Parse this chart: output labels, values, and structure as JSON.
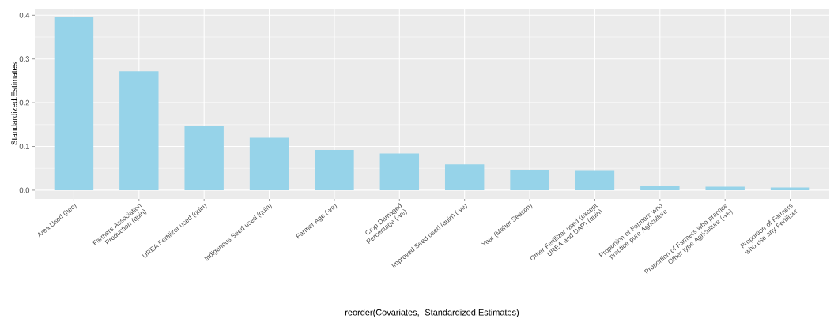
{
  "chart_data": {
    "type": "bar",
    "xlabel": "reorder(Covariates, -Standardized.Estimates)",
    "ylabel": "Standardized.Estimates",
    "categories": [
      "Area Used (hec)",
      "Farmers Association Production (quin)",
      "UREA Fertilizer used (quin)",
      "Indigenous Seed used (quin)",
      "Farmer Age (-ve)",
      "Crop Damaged Percentage (-ve)",
      "Improved Seed used (quin) (-ve)",
      "Year (Meher Season)",
      "Other Fertilizer used (except UREA and DAP) (quin)",
      "Proportion of Farmers who practice pure Agriculture",
      "Proportion of Farmers who practice Other type Agriculture (-ve)",
      "Proportion of Farmers who use any Fertilizer"
    ],
    "values": [
      0.395,
      0.272,
      0.148,
      0.12,
      0.092,
      0.084,
      0.059,
      0.045,
      0.044,
      0.009,
      0.008,
      0.006
    ],
    "color": "#96d3e9",
    "ylim": [
      -0.02,
      0.415
    ],
    "yticks": [
      {
        "value": 0,
        "label": "0.0"
      },
      {
        "value": 0.1,
        "label": "0.1"
      },
      {
        "value": 0.2,
        "label": "0.2"
      },
      {
        "value": 0.3,
        "label": "0.3"
      },
      {
        "value": 0.4,
        "label": "0.4"
      }
    ],
    "grid": true
  }
}
